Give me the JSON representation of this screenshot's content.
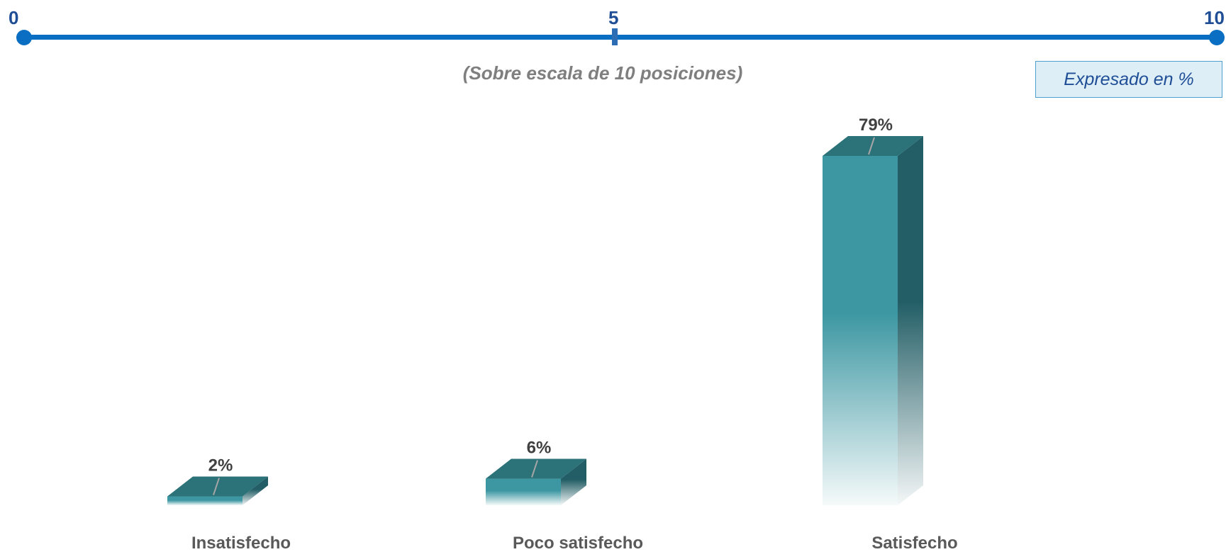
{
  "scale": {
    "min_label": "0",
    "mid_label": "5",
    "max_label": "10",
    "subtitle": "(Sobre escala de 10 posiciones)"
  },
  "note": "Expresado en %",
  "colors": {
    "scale_blue": "#0A6FC2",
    "bar_front": "#3C97A2",
    "bar_top": "#2C7279",
    "bar_side": "#235E66"
  },
  "chart_data": {
    "type": "bar",
    "categories": [
      "Insatisfecho",
      "Poco satisfecho",
      "Satisfecho"
    ],
    "values": [
      2,
      6,
      79
    ],
    "value_labels": [
      "2%",
      "6%",
      "79%"
    ],
    "title": "",
    "xlabel": "",
    "ylabel": "",
    "ylim": [
      0,
      79
    ],
    "grid": false,
    "legend": "none"
  }
}
